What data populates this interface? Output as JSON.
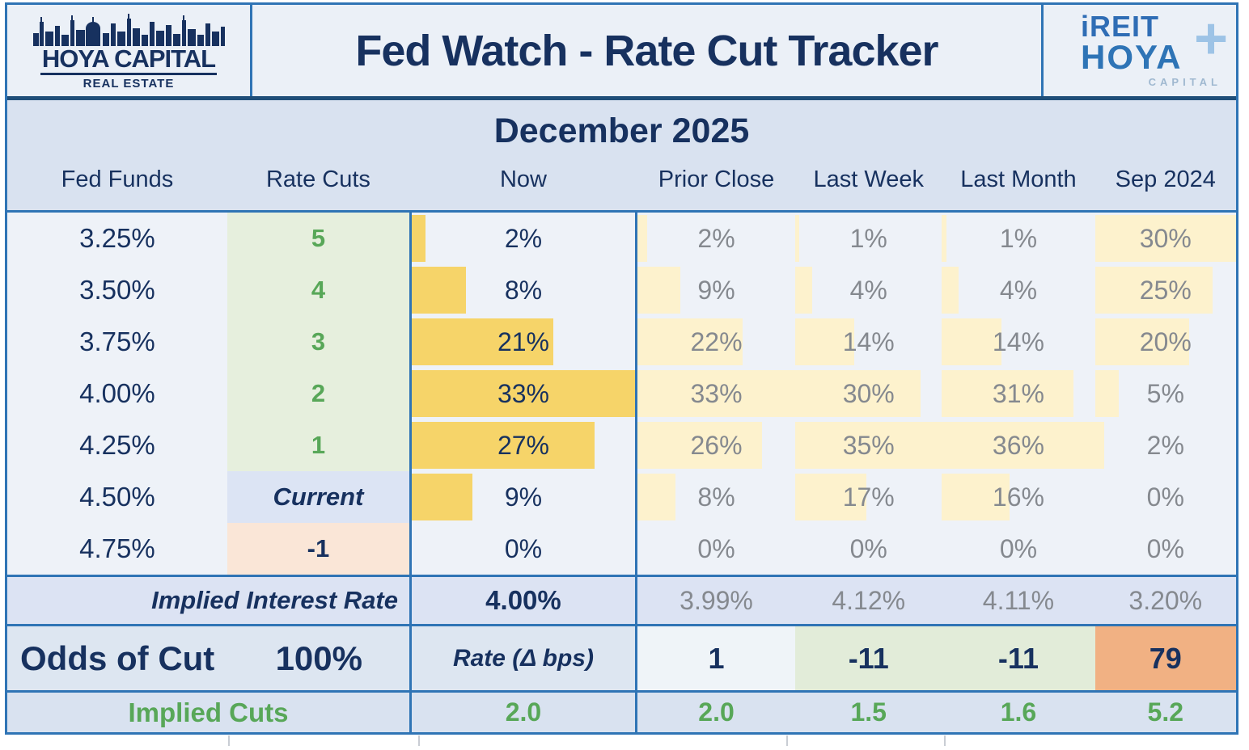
{
  "header": {
    "brand_left": {
      "name": "HOYA CAPITAL",
      "subtitle": "REAL ESTATE"
    },
    "title": "Fed Watch - Rate Cut Tracker",
    "brand_right": {
      "line1": "iREIT",
      "plus": "+",
      "line2": "HOYA",
      "line3": "CAPITAL"
    }
  },
  "month_label": "December 2025",
  "columns": {
    "fed_funds": "Fed Funds",
    "rate_cuts": "Rate Cuts",
    "now": "Now",
    "prior_close": "Prior Close",
    "last_week": "Last Week",
    "last_month": "Last Month",
    "sep_2024": "Sep 2024"
  },
  "probability_rows": [
    {
      "fed_funds": "3.25%",
      "rate_cuts": "5",
      "rate_cuts_style": "green",
      "now": {
        "label": "2%",
        "value": 2
      },
      "prior_close": {
        "label": "2%",
        "value": 2
      },
      "last_week": {
        "label": "1%",
        "value": 1
      },
      "last_month": {
        "label": "1%",
        "value": 1
      },
      "sep_2024": {
        "label": "30%",
        "value": 30
      }
    },
    {
      "fed_funds": "3.50%",
      "rate_cuts": "4",
      "rate_cuts_style": "green",
      "now": {
        "label": "8%",
        "value": 8
      },
      "prior_close": {
        "label": "9%",
        "value": 9
      },
      "last_week": {
        "label": "4%",
        "value": 4
      },
      "last_month": {
        "label": "4%",
        "value": 4
      },
      "sep_2024": {
        "label": "25%",
        "value": 25
      }
    },
    {
      "fed_funds": "3.75%",
      "rate_cuts": "3",
      "rate_cuts_style": "green",
      "now": {
        "label": "21%",
        "value": 21
      },
      "prior_close": {
        "label": "22%",
        "value": 22
      },
      "last_week": {
        "label": "14%",
        "value": 14
      },
      "last_month": {
        "label": "14%",
        "value": 14
      },
      "sep_2024": {
        "label": "20%",
        "value": 20
      }
    },
    {
      "fed_funds": "4.00%",
      "rate_cuts": "2",
      "rate_cuts_style": "green",
      "now": {
        "label": "33%",
        "value": 33
      },
      "prior_close": {
        "label": "33%",
        "value": 33
      },
      "last_week": {
        "label": "30%",
        "value": 30
      },
      "last_month": {
        "label": "31%",
        "value": 31
      },
      "sep_2024": {
        "label": "5%",
        "value": 5
      }
    },
    {
      "fed_funds": "4.25%",
      "rate_cuts": "1",
      "rate_cuts_style": "green",
      "now": {
        "label": "27%",
        "value": 27
      },
      "prior_close": {
        "label": "26%",
        "value": 26
      },
      "last_week": {
        "label": "35%",
        "value": 35
      },
      "last_month": {
        "label": "36%",
        "value": 36
      },
      "sep_2024": {
        "label": "2%",
        "value": 2
      }
    },
    {
      "fed_funds": "4.50%",
      "rate_cuts": "Current",
      "rate_cuts_style": "current",
      "now": {
        "label": "9%",
        "value": 9
      },
      "prior_close": {
        "label": "8%",
        "value": 8
      },
      "last_week": {
        "label": "17%",
        "value": 17
      },
      "last_month": {
        "label": "16%",
        "value": 16
      },
      "sep_2024": {
        "label": "0%",
        "value": 0
      }
    },
    {
      "fed_funds": "4.75%",
      "rate_cuts": "-1",
      "rate_cuts_style": "neg",
      "now": {
        "label": "0%",
        "value": 0
      },
      "prior_close": {
        "label": "0%",
        "value": 0
      },
      "last_week": {
        "label": "0%",
        "value": 0
      },
      "last_month": {
        "label": "0%",
        "value": 0
      },
      "sep_2024": {
        "label": "0%",
        "value": 0
      }
    }
  ],
  "bar_scale_max": {
    "now": 33,
    "prior_close": 33,
    "last_week": 35,
    "last_month": 36,
    "sep_2024": 30
  },
  "implied_rate": {
    "label": "Implied Interest Rate",
    "now": "4.00%",
    "prior_close": "3.99%",
    "last_week": "4.12%",
    "last_month": "4.11%",
    "sep_2024": "3.20%"
  },
  "odds_row": {
    "label": "Odds of Cut",
    "value": "100%",
    "rate_label": "Rate (Δ bps)",
    "prior_close": {
      "label": "1",
      "style": "neutral"
    },
    "last_week": {
      "label": "-11",
      "style": "green"
    },
    "last_month": {
      "label": "-11",
      "style": "green"
    },
    "sep_2024": {
      "label": "79",
      "style": "orange"
    }
  },
  "implied_cuts": {
    "label": "Implied Cuts",
    "now": "2.0",
    "prior_close": "2.0",
    "last_week": "1.5",
    "last_month": "1.6",
    "sep_2024": "5.2"
  },
  "colors": {
    "navy": "#17315f",
    "border_blue": "#2f74b5",
    "header_divider": "#1f4e79",
    "row_bg": "#eef2f8",
    "band_bg": "#d9e2f0",
    "panel_bg": "#dde6f1",
    "implied_rate_bg": "#dce3f3",
    "cuts_green_bg": "#e6efdd",
    "green_text": "#58a758",
    "gray_text": "#85898f",
    "gold_bar": "#f6d469",
    "cream_bar": "#fdf2cd",
    "current_bg": "#dce4f4",
    "neg_bg": "#fae6d7",
    "delta_green_bg": "#e2ecd9",
    "delta_orange_bg": "#f1b183",
    "delta_neutral_bg": "#eff4f8"
  },
  "chart_data": {
    "type": "table",
    "title": "Fed Watch - Rate Cut Tracker",
    "subtitle": "December 2025",
    "columns": [
      "Fed Funds",
      "Rate Cuts",
      "Now",
      "Prior Close",
      "Last Week",
      "Last Month",
      "Sep 2024"
    ],
    "rows": [
      [
        "3.25%",
        "5",
        "2%",
        "2%",
        "1%",
        "1%",
        "30%"
      ],
      [
        "3.50%",
        "4",
        "8%",
        "9%",
        "4%",
        "4%",
        "25%"
      ],
      [
        "3.75%",
        "3",
        "21%",
        "22%",
        "14%",
        "14%",
        "20%"
      ],
      [
        "4.00%",
        "2",
        "33%",
        "33%",
        "30%",
        "31%",
        "5%"
      ],
      [
        "4.25%",
        "1",
        "27%",
        "26%",
        "35%",
        "36%",
        "2%"
      ],
      [
        "4.50%",
        "Current",
        "9%",
        "8%",
        "17%",
        "16%",
        "0%"
      ],
      [
        "4.75%",
        "-1",
        "0%",
        "0%",
        "0%",
        "0%",
        "0%"
      ]
    ],
    "implied_interest_rate": {
      "Now": "4.00%",
      "Prior Close": "3.99%",
      "Last Week": "4.12%",
      "Last Month": "4.11%",
      "Sep 2024": "3.20%"
    },
    "odds_of_cut": "100%",
    "rate_delta_bps": {
      "Prior Close": 1,
      "Last Week": -11,
      "Last Month": -11,
      "Sep 2024": 79
    },
    "implied_cuts": {
      "Now": 2.0,
      "Prior Close": 2.0,
      "Last Week": 1.5,
      "Last Month": 1.6,
      "Sep 2024": 5.2
    },
    "notes": "Yellow data bars depict probability magnitude per column; bar max scales: Now 33, Prior Close 33, Last Week 35, Last Month 36, Sep 2024 30"
  }
}
